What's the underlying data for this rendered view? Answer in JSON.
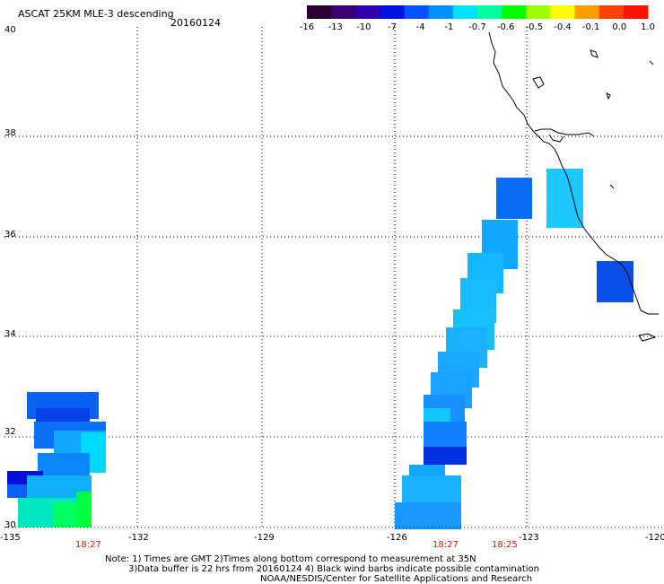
{
  "title": "ASCAT 25KM MLE-3 descending",
  "date": "20160124",
  "colorbar": {
    "labels": [
      "-16",
      "-13",
      "-10",
      "-7",
      "-4",
      "-1",
      "-0.7",
      "-0.6",
      "-0.5",
      "-0.4",
      "-0.1",
      "0.0",
      "1.0"
    ],
    "colors": [
      "#2a0030",
      "#3a0070",
      "#3000b0",
      "#0010e0",
      "#0050ff",
      "#0090ff",
      "#00e0ff",
      "#00ffa0",
      "#00ff00",
      "#a0ff00",
      "#ffff00",
      "#ffa000",
      "#ff4000",
      "#ff1000"
    ]
  },
  "lat_labels": [
    "40",
    "38",
    "36",
    "34",
    "32",
    "30"
  ],
  "lon_labels": [
    "-135",
    "-132",
    "-129",
    "-126",
    "-123",
    "-120"
  ],
  "time_labels": [
    "18:27",
    "18:27",
    "18:25"
  ],
  "notes": {
    "line1": "Note: 1) Times are GMT 2)Times along bottom correspond to measurement at 35N",
    "line2": "3)Data buffer is 22 hrs from 20160124 4) Black wind barbs indicate possible contamination",
    "line3": "NOAA/NESDIS/Center for Satellite Applications and Research"
  }
}
